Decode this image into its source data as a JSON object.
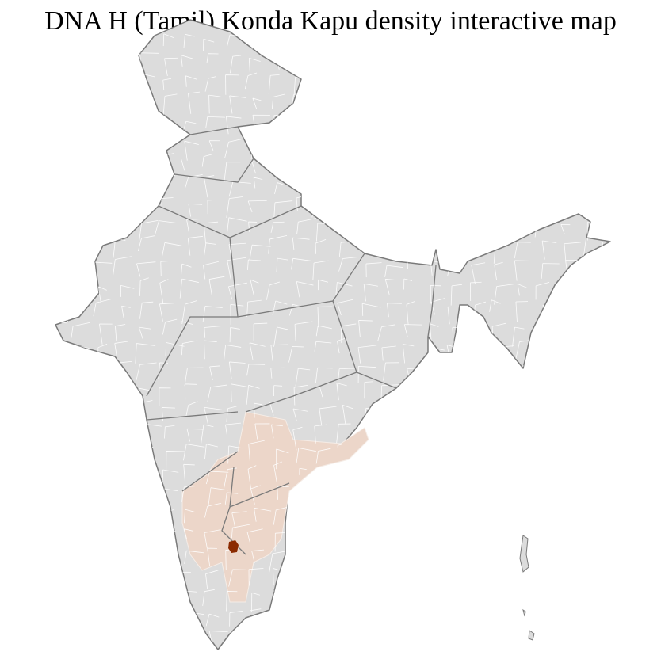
{
  "title": "DNA H (Tamil) Konda Kapu density interactive map",
  "colors": {
    "no_data": "#dcdcdc",
    "low_density": "#ecd6c9",
    "high_density": "#8b2a00",
    "district_border": "#ffffff",
    "state_border": "#7a7a7a"
  },
  "regions": [
    {
      "name": "South India districts",
      "level": "low"
    },
    {
      "name": "Highest density district",
      "level": "high"
    }
  ]
}
